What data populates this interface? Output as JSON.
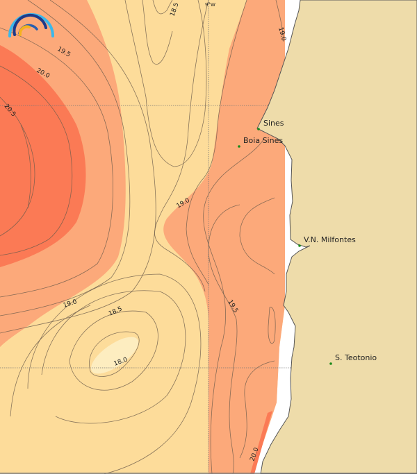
{
  "map": {
    "grid_label": "9°W",
    "colors": {
      "band_below_18_0": "#fdedc0",
      "band_18_0_19_0": "#fddc9a",
      "band_19_0_20_0": "#fca97a",
      "band_above_20_0": "#fb7a55",
      "land": "#eedcaa",
      "coastline": "#555555",
      "station_marker": "#1a8a1a",
      "logo_cyan": "#3bb8ea",
      "logo_navy": "#1d3a8a",
      "logo_yellow": "#f5b21f"
    },
    "contour_labels": [
      "18.5",
      "19.0",
      "19.5",
      "20.0",
      "20.5",
      "19.5",
      "19.0",
      "18.5",
      "18.0",
      "19.5",
      "20.0"
    ],
    "places": [
      {
        "name": "Sines"
      },
      {
        "name": "Boia Sines"
      },
      {
        "name": "V.N. Milfontes"
      },
      {
        "name": "S. Teotonio"
      }
    ]
  }
}
